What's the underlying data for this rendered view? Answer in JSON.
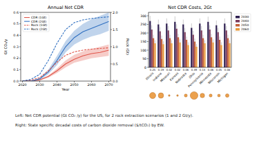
{
  "chart_data": [
    {
      "type": "line",
      "title": "Annual Net CDR",
      "x_label": "Year",
      "y_label": "Gt CO₂/y",
      "y2_label": "Rock (Gt)",
      "x": [
        2020,
        2025,
        2030,
        2035,
        2040,
        2045,
        2050,
        2055,
        2060,
        2065,
        2070
      ],
      "xlim": [
        2019,
        2071
      ],
      "xticks": [
        2020,
        2030,
        2040,
        2050,
        2060,
        2070
      ],
      "ylim": [
        0,
        0.6
      ],
      "yticks": [
        {
          "value": 0,
          "label": "0.0"
        },
        0.1,
        0.2,
        0.3,
        0.4,
        0.5,
        0.6
      ],
      "y2lim": [
        0,
        2.0
      ],
      "y2ticks": [
        {
          "value": 0,
          "label": "0.0"
        },
        0.5,
        {
          "value": 1,
          "label": "1.0"
        },
        1.5,
        {
          "value": 2,
          "label": "2.0"
        }
      ],
      "legend": "upper left",
      "grid": false,
      "series": [
        {
          "name": "CDR (1Gt)",
          "color": "#e0554a",
          "line_style": "solid",
          "values": [
            0,
            0,
            0.01,
            0.04,
            0.09,
            0.15,
            0.19,
            0.22,
            0.24,
            0.25,
            0.27
          ],
          "lower": [
            0,
            0,
            0.005,
            0.03,
            0.07,
            0.12,
            0.16,
            0.18,
            0.2,
            0.21,
            0.22
          ],
          "upper": [
            0,
            0,
            0.015,
            0.05,
            0.11,
            0.18,
            0.23,
            0.26,
            0.28,
            0.3,
            0.32
          ]
        },
        {
          "name": "CDR (2Gt)",
          "color": "#2f6fc0",
          "line_style": "solid",
          "values": [
            0,
            0,
            0.02,
            0.08,
            0.18,
            0.3,
            0.38,
            0.43,
            0.46,
            0.49,
            0.52
          ],
          "lower": [
            0,
            0,
            0.01,
            0.06,
            0.14,
            0.25,
            0.32,
            0.36,
            0.39,
            0.41,
            0.44
          ],
          "upper": [
            0,
            0,
            0.03,
            0.1,
            0.22,
            0.35,
            0.44,
            0.5,
            0.54,
            0.57,
            0.6
          ]
        },
        {
          "name": "Rock (1Gt)",
          "color": "#e0554a",
          "line_style": "dashed",
          "axis": "y2",
          "values": [
            0,
            0.03,
            0.1,
            0.3,
            0.55,
            0.75,
            0.85,
            0.9,
            0.93,
            0.95,
            0.97
          ]
        },
        {
          "name": "Rock (2Gt)",
          "color": "#2f6fc0",
          "line_style": "dashed",
          "axis": "y2",
          "values": [
            0,
            0.05,
            0.2,
            0.6,
            1.1,
            1.5,
            1.7,
            1.78,
            1.82,
            1.85,
            1.87
          ]
        }
      ]
    },
    {
      "type": "bar",
      "title": "Net CDR Costs, 2Gt",
      "categories": [
        "Illinois",
        "Indiana",
        "Missouri",
        "Kansas",
        "Nebraska",
        "Ohio",
        "Pennsylvania",
        "Minnesota",
        "Wisconsin",
        "Michigan"
      ],
      "ylim": [
        0,
        320
      ],
      "yticks": [
        0,
        50,
        100,
        150,
        200,
        250,
        300
      ],
      "legend": "right",
      "grid": false,
      "series": [
        {
          "name": "2030",
          "color": "#2d1e4f",
          "values": [
            270,
            250,
            255,
            265,
            250,
            230,
            255,
            265,
            245,
            255
          ],
          "errors": [
            30,
            28,
            30,
            32,
            28,
            26,
            30,
            30,
            28,
            30
          ]
        },
        {
          "name": "2040",
          "color": "#7b3a5a",
          "values": [
            220,
            210,
            215,
            225,
            205,
            190,
            215,
            220,
            205,
            215
          ],
          "errors": [
            25,
            24,
            25,
            26,
            24,
            22,
            25,
            25,
            24,
            25
          ]
        },
        {
          "name": "2050",
          "color": "#c2603a",
          "values": [
            170,
            165,
            170,
            175,
            160,
            150,
            170,
            175,
            160,
            170
          ],
          "errors": [
            20,
            20,
            20,
            21,
            19,
            18,
            20,
            20,
            19,
            20
          ]
        },
        {
          "name": "2060",
          "color": "#e89a3a",
          "values": [
            140,
            135,
            140,
            145,
            130,
            120,
            140,
            145,
            130,
            140
          ],
          "errors": [
            18,
            17,
            18,
            18,
            16,
            15,
            18,
            18,
            16,
            18
          ]
        }
      ],
      "sizes": [
        0.25,
        0.19,
        0.02,
        0.02,
        0.06,
        0.39,
        0.13,
        0.06,
        0.05,
        0.08
      ],
      "sizes_color": "#e8912f"
    }
  ],
  "caption": {
    "lines": [
      "Left: Net CDR potential (Gt CO₂ /y) for the US, for 2 rock extraction scenarios (1 and 2 Gt/y).",
      "Right: State specific decadal costs of carbon dioxide removal ($/tCO₂) by EW."
    ]
  }
}
